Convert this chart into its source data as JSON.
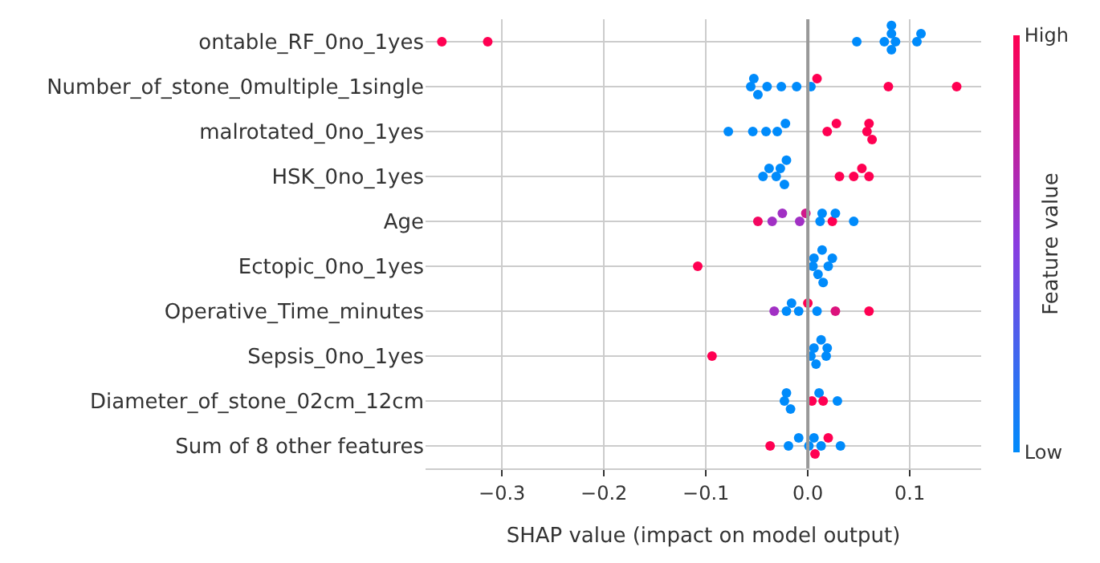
{
  "chart_data": {
    "type": "scatter",
    "orientation": "horizontal",
    "xlabel": "SHAP value (impact on model output)",
    "clabel": "Feature value",
    "categories": [
      "ontable_RF_0no_1yes",
      "Number_of_stone_0multiple_1single",
      "malrotated_0no_1yes",
      "HSK_0no_1yes",
      "Age",
      "Ectopic_0no_1yes",
      "Operative_Time_minutes",
      "Sepsis_0no_1yes",
      "Diameter_of_stone_02cm_12cm",
      "Sum of 8 other features"
    ],
    "series": [
      {
        "x": [
          "ontable_RF_0no_1yes",
          "ontable_RF_0no_1yes",
          "ontable_RF_0no_1yes",
          "ontable_RF_0no_1yes",
          "ontable_RF_0no_1yes",
          "ontable_RF_0no_1yes",
          "ontable_RF_0no_1yes",
          "ontable_RF_0no_1yes",
          "ontable_RF_0no_1yes",
          "ontable_RF_0no_1yes",
          "Number_of_stone_0multiple_1single",
          "Number_of_stone_0multiple_1single",
          "Number_of_stone_0multiple_1single",
          "Number_of_stone_0multiple_1single",
          "Number_of_stone_0multiple_1single",
          "Number_of_stone_0multiple_1single",
          "Number_of_stone_0multiple_1single",
          "Number_of_stone_0multiple_1single",
          "Number_of_stone_0multiple_1single",
          "Number_of_stone_0multiple_1single",
          "malrotated_0no_1yes",
          "malrotated_0no_1yes",
          "malrotated_0no_1yes",
          "malrotated_0no_1yes",
          "malrotated_0no_1yes",
          "malrotated_0no_1yes",
          "malrotated_0no_1yes",
          "malrotated_0no_1yes",
          "malrotated_0no_1yes",
          "malrotated_0no_1yes",
          "HSK_0no_1yes",
          "HSK_0no_1yes",
          "HSK_0no_1yes",
          "HSK_0no_1yes",
          "HSK_0no_1yes",
          "HSK_0no_1yes",
          "HSK_0no_1yes",
          "HSK_0no_1yes",
          "HSK_0no_1yes",
          "HSK_0no_1yes",
          "Age",
          "Age",
          "Age",
          "Age",
          "Age",
          "Age",
          "Age",
          "Age",
          "Age",
          "Age",
          "Ectopic_0no_1yes",
          "Ectopic_0no_1yes",
          "Ectopic_0no_1yes",
          "Ectopic_0no_1yes",
          "Ectopic_0no_1yes",
          "Ectopic_0no_1yes",
          "Ectopic_0no_1yes",
          "Ectopic_0no_1yes",
          "Operative_Time_minutes",
          "Operative_Time_minutes",
          "Operative_Time_minutes",
          "Operative_Time_minutes",
          "Operative_Time_minutes",
          "Operative_Time_minutes",
          "Operative_Time_minutes",
          "Operative_Time_minutes",
          "Sepsis_0no_1yes",
          "Sepsis_0no_1yes",
          "Sepsis_0no_1yes",
          "Sepsis_0no_1yes",
          "Sepsis_0no_1yes",
          "Sepsis_0no_1yes",
          "Sepsis_0no_1yes",
          "Diameter_of_stone_02cm_12cm",
          "Diameter_of_stone_02cm_12cm",
          "Diameter_of_stone_02cm_12cm",
          "Diameter_of_stone_02cm_12cm",
          "Diameter_of_stone_02cm_12cm",
          "Diameter_of_stone_02cm_12cm",
          "Diameter_of_stone_02cm_12cm",
          "Sum of 8 other features",
          "Sum of 8 other features",
          "Sum of 8 other features",
          "Sum of 8 other features",
          "Sum of 8 other features",
          "Sum of 8 other features",
          "Sum of 8 other features",
          "Sum of 8 other features",
          "Sum of 8 other features"
        ],
        "values": [
          -0.359,
          -0.314,
          0.048,
          0.075,
          0.082,
          0.082,
          0.082,
          0.086,
          0.107,
          0.111,
          -0.056,
          -0.053,
          -0.049,
          -0.04,
          -0.026,
          -0.011,
          0.003,
          0.009,
          0.079,
          0.146,
          -0.078,
          -0.054,
          -0.041,
          -0.03,
          -0.022,
          0.019,
          0.028,
          0.058,
          0.06,
          0.063,
          -0.044,
          -0.038,
          -0.031,
          -0.027,
          -0.023,
          -0.021,
          0.031,
          0.045,
          0.053,
          0.06,
          -0.049,
          -0.035,
          -0.025,
          -0.008,
          -0.002,
          0.012,
          0.014,
          0.024,
          0.027,
          0.045,
          -0.108,
          0.005,
          0.006,
          0.01,
          0.014,
          0.015,
          0.02,
          0.024,
          -0.033,
          -0.021,
          -0.016,
          -0.009,
          0.0,
          0.009,
          0.027,
          0.06,
          -0.094,
          0.003,
          0.006,
          0.008,
          0.013,
          0.018,
          0.019,
          -0.023,
          -0.021,
          -0.017,
          0.004,
          0.011,
          0.015,
          0.029,
          -0.037,
          -0.019,
          -0.009,
          0.001,
          0.006,
          0.007,
          0.013,
          0.02,
          0.032
        ],
        "cvalues": [
          1,
          1,
          0,
          0,
          0,
          0,
          0,
          0,
          0,
          0,
          0,
          0,
          0,
          0,
          0,
          0,
          0,
          1,
          1,
          1,
          0,
          0,
          0,
          0,
          0,
          1,
          1,
          1,
          1,
          1,
          0,
          0,
          0,
          0,
          0,
          0,
          1,
          1,
          1,
          1,
          0.95,
          0.6,
          0.6,
          0.6,
          0.8,
          0,
          0,
          1,
          0,
          0,
          1,
          0,
          0,
          0,
          0,
          0,
          0,
          0,
          0.6,
          0,
          0,
          0,
          1,
          0,
          0.85,
          1,
          1,
          0,
          0,
          0,
          0,
          0,
          0,
          0,
          0,
          0,
          1,
          0,
          1,
          0,
          1,
          0,
          0,
          0,
          0,
          1,
          0,
          1,
          0
        ]
      }
    ],
    "colors": [
      "#008bfb",
      "#8a3ce0",
      "#ff0052"
    ],
    "clim": [
      0,
      1
    ],
    "cticks": [
      {
        "value": 0,
        "label": "Low"
      },
      {
        "value": 1,
        "label": "High"
      }
    ],
    "xlim": [
      -0.375,
      0.17
    ],
    "xticks": [
      {
        "value": -0.3,
        "label": "−0.3"
      },
      {
        "value": -0.2,
        "label": "−0.2"
      },
      {
        "value": -0.1,
        "label": "−0.1"
      },
      {
        "value": 0,
        "label": "0.0"
      },
      {
        "value": 0.1,
        "label": "0.1"
      }
    ],
    "ref_lines": [
      {
        "axis": "x",
        "value": 0,
        "color": "#999999"
      }
    ],
    "grid": true,
    "marker": "circle"
  }
}
